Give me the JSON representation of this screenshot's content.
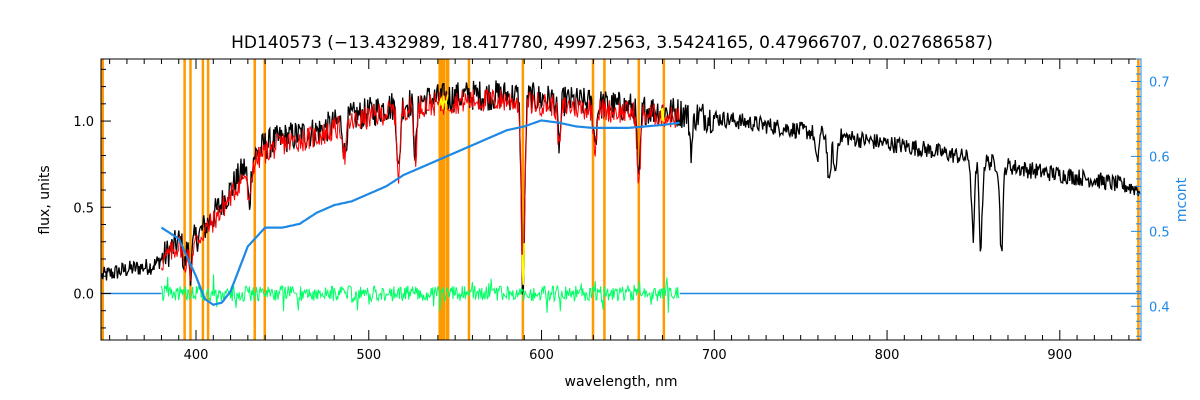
{
  "chart_data": {
    "type": "line",
    "title": "HD140573   (−13.432989, 18.417780, 4997.2563, 3.5424165, 0.47966707, 0.027686587)",
    "xlabel": "wavelength, nm",
    "ylabel": "flux, units",
    "y2label": "mcont",
    "xlim": [
      345,
      947
    ],
    "ylim": [
      -0.27,
      1.36
    ],
    "y2lim": [
      0.355,
      0.73
    ],
    "xticks": [
      400,
      500,
      600,
      700,
      800,
      900
    ],
    "yticks": [
      0.0,
      0.5,
      1.0
    ],
    "yticklabels": [
      "0.0",
      "0.5",
      "1.0"
    ],
    "y2ticks": [
      0.4,
      0.5,
      0.6,
      0.7
    ],
    "y2ticklabels": [
      "0.4",
      "0.5",
      "0.6",
      "0.7"
    ],
    "grid": false,
    "colors": {
      "observed": "#000000",
      "model": "#ff0000",
      "mask": "#ffff00",
      "residual": "#00ff66",
      "continuum": "#1e88e5",
      "lines": "#ff9900"
    },
    "vertical_lines_nm": [
      346,
      393.4,
      396.8,
      404,
      407,
      434,
      439.8,
      541.5,
      543,
      545.5,
      558,
      589.2,
      629.8,
      636.4,
      656.3,
      670.8,
      945.5
    ],
    "series": [
      {
        "role": "observed",
        "x": [
          345,
          360,
          375,
          380,
          390,
          400,
          410,
          420,
          430,
          440,
          450,
          460,
          470,
          480,
          490,
          500,
          510,
          520,
          530,
          540,
          550,
          560,
          570,
          580,
          590,
          600,
          610,
          620,
          630,
          640,
          650,
          660,
          670,
          680,
          700,
          720,
          740,
          760,
          780,
          800,
          820,
          840,
          860,
          880,
          900,
          920,
          940,
          947
        ],
        "y": [
          0.1,
          0.14,
          0.16,
          0.2,
          0.3,
          0.32,
          0.45,
          0.6,
          0.76,
          0.86,
          0.9,
          0.92,
          0.94,
          0.98,
          1.02,
          1.05,
          1.08,
          1.1,
          1.12,
          1.13,
          1.14,
          1.15,
          1.15,
          1.15,
          1.14,
          1.13,
          1.12,
          1.11,
          1.1,
          1.09,
          1.08,
          1.07,
          1.06,
          1.05,
          1.02,
          0.99,
          0.96,
          0.93,
          0.9,
          0.87,
          0.84,
          0.8,
          0.76,
          0.72,
          0.69,
          0.66,
          0.62,
          0.6
        ]
      },
      {
        "role": "model",
        "x": [
          380,
          390,
          400,
          410,
          420,
          430,
          440,
          450,
          460,
          470,
          480,
          490,
          500,
          510,
          520,
          530,
          540,
          550,
          560,
          570,
          580,
          590,
          600,
          610,
          620,
          630,
          640,
          650,
          660,
          670,
          680
        ],
        "y": [
          0.18,
          0.28,
          0.3,
          0.42,
          0.56,
          0.72,
          0.82,
          0.87,
          0.89,
          0.91,
          0.95,
          0.99,
          1.02,
          1.05,
          1.07,
          1.09,
          1.1,
          1.11,
          1.12,
          1.12,
          1.12,
          1.11,
          1.1,
          1.09,
          1.08,
          1.07,
          1.06,
          1.05,
          1.04,
          1.03,
          1.02
        ]
      },
      {
        "role": "residual",
        "x": [
          380,
          680
        ],
        "y": [
          0.0,
          0.0
        ]
      },
      {
        "role": "continuum",
        "axis": "right",
        "x": [
          380,
          390,
          400,
          405,
          410,
          415,
          420,
          425,
          430,
          440,
          450,
          460,
          470,
          480,
          490,
          500,
          510,
          520,
          530,
          540,
          550,
          560,
          570,
          580,
          590,
          600,
          610,
          620,
          630,
          640,
          650,
          660,
          670,
          680
        ],
        "y": [
          0.505,
          0.49,
          0.44,
          0.41,
          0.402,
          0.405,
          0.42,
          0.45,
          0.48,
          0.505,
          0.505,
          0.51,
          0.525,
          0.535,
          0.54,
          0.55,
          0.56,
          0.575,
          0.585,
          0.595,
          0.605,
          0.615,
          0.625,
          0.635,
          0.64,
          0.648,
          0.645,
          0.64,
          0.638,
          0.638,
          0.638,
          0.64,
          0.642,
          0.645
        ]
      }
    ],
    "absorption_features_nm": [
      {
        "x": 393.4,
        "depth": 0.15
      },
      {
        "x": 396.8,
        "depth": 0.18
      },
      {
        "x": 430.8,
        "depth": 0.25
      },
      {
        "x": 486.1,
        "depth": 0.2
      },
      {
        "x": 517.3,
        "depth": 0.4
      },
      {
        "x": 527.0,
        "depth": 0.3
      },
      {
        "x": 589.0,
        "depth": 0.62
      },
      {
        "x": 589.6,
        "depth": 0.6
      },
      {
        "x": 610.2,
        "depth": 0.25
      },
      {
        "x": 631.0,
        "depth": 0.22
      },
      {
        "x": 656.3,
        "depth": 0.45
      },
      {
        "x": 686.7,
        "depth": 0.2
      },
      {
        "x": 759.4,
        "depth": 0.18
      },
      {
        "x": 766.5,
        "depth": 0.3
      },
      {
        "x": 770.0,
        "depth": 0.22
      },
      {
        "x": 849.8,
        "depth": 0.45
      },
      {
        "x": 854.2,
        "depth": 0.5
      },
      {
        "x": 866.2,
        "depth": 0.5
      }
    ]
  }
}
